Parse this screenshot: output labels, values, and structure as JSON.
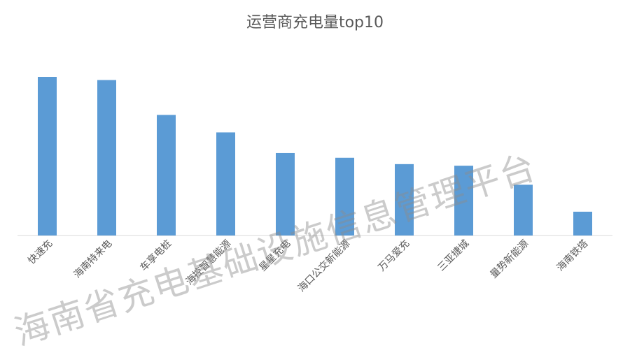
{
  "title": "运营商充电量top10",
  "watermark": "海南省充电基础设施信息管理平台",
  "chart_data": {
    "type": "bar",
    "title": "运营商充电量top10",
    "categories": [
      "快速充",
      "海南特来电",
      "车享电桩",
      "海控智慧能源",
      "星星充电",
      "海口公交新能源",
      "万马爱充",
      "三亚捷城",
      "量势新能源",
      "海南铁塔"
    ],
    "values": [
      100,
      98,
      76,
      65,
      52,
      49,
      45,
      44,
      32,
      15
    ],
    "ylim": [
      0,
      100
    ],
    "grid": false,
    "legend": "none",
    "bar_color": "#5B9BD5"
  }
}
